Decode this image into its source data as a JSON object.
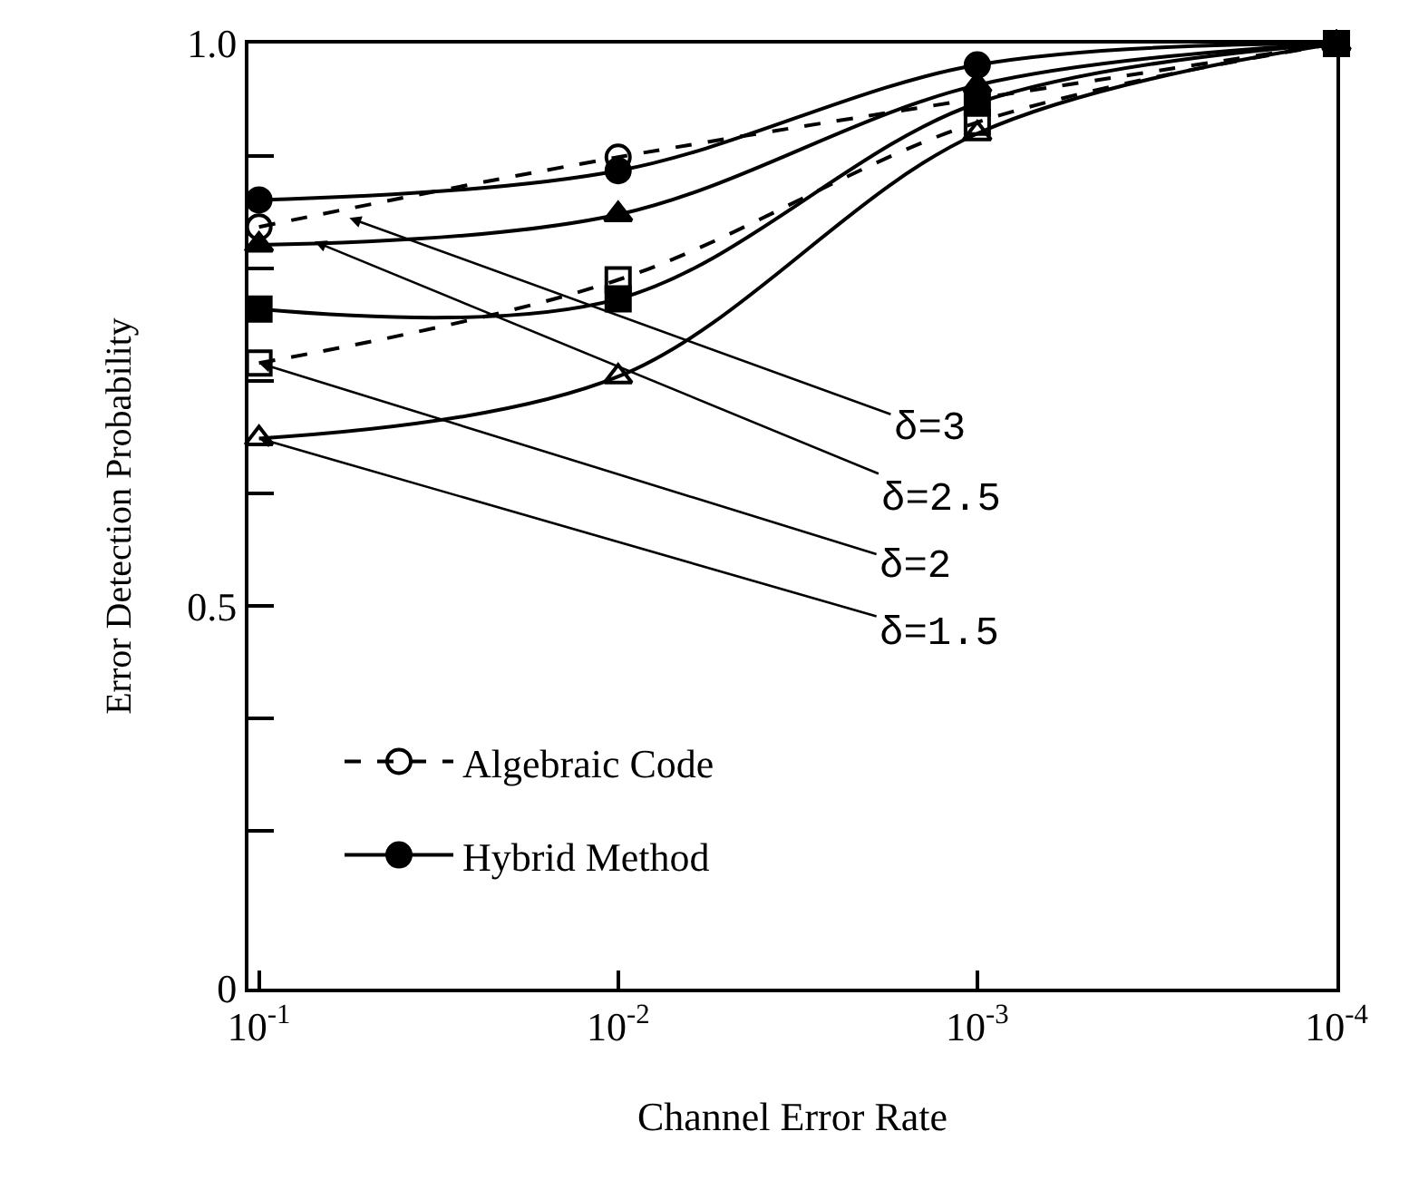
{
  "chart_data": {
    "type": "line",
    "xlabel": "Channel Error Rate",
    "ylabel": "Error Detection Probability",
    "log": "x",
    "xlim": [
      0.107,
      0.0001
    ],
    "xticks": [
      {
        "value": 0.1,
        "label": "10$^{-1}$"
      },
      {
        "value": 0.01,
        "label": "10$^{-2}$"
      },
      {
        "value": 0.001,
        "label": "10$^{-3}$"
      },
      {
        "value": 0.0001,
        "label": "10$^{-4}$"
      }
    ],
    "ylim": [
      0.16,
      1.0
    ],
    "yticks": [
      {
        "value": 0.16,
        "label": "0"
      },
      {
        "value": 0.3,
        "label": null
      },
      {
        "value": 0.4,
        "label": null
      },
      0.5,
      {
        "value": 0.6,
        "label": null
      },
      {
        "value": 0.7,
        "label": null
      },
      {
        "value": 0.8,
        "label": null
      },
      {
        "value": 0.9,
        "label": null
      },
      {
        "value": 1.0,
        "label": "1.0"
      }
    ],
    "grid": false,
    "legend": "bottom left",
    "x": [
      0.1,
      0.01,
      0.001,
      0.0001
    ],
    "series": [
      {
        "name": "Algebraic Code",
        "color": "#000000",
        "line_style": "dashed",
        "marker": "circle-open",
        "values": [
          0.837,
          0.899,
          null,
          1.0
        ]
      },
      {
        "name": "Hybrid Method",
        "color": "#000000",
        "line_style": "solid",
        "marker": "circle",
        "values": [
          0.861,
          0.887,
          0.981,
          1.0
        ]
      },
      {
        "color": "#000000",
        "line_style": "solid",
        "marker": "triangle",
        "values": [
          0.821,
          0.848,
          0.963,
          1.0
        ]
      },
      {
        "color": "#000000",
        "line_style": "dashed",
        "marker": "square-open",
        "values": [
          0.716,
          0.79,
          0.93,
          1.0
        ]
      },
      {
        "color": "#000000",
        "line_style": "solid",
        "marker": "square",
        "values": [
          0.764,
          0.773,
          0.947,
          1.0
        ]
      },
      {
        "color": "#000000",
        "line_style": "solid",
        "marker": "triangle-open",
        "values": [
          0.649,
          0.704,
          0.92,
          1.0
        ]
      }
    ],
    "annotations": [
      {
        "text": "δ=3",
        "x": 0.056,
        "y": 0.845
      },
      {
        "text": "δ=2.5",
        "x": 0.07,
        "y": 0.824
      },
      {
        "text": "δ=2",
        "x": 0.1,
        "y": 0.716
      },
      {
        "text": "δ=1.5",
        "x": 0.1,
        "y": 0.649
      }
    ]
  }
}
